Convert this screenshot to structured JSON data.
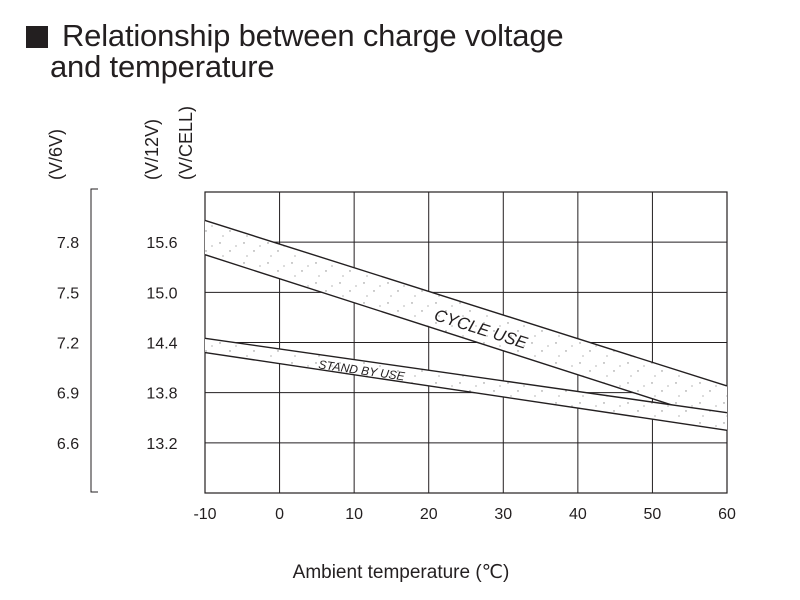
{
  "title": {
    "line1": "Relationship between charge voltage",
    "line2": "and temperature"
  },
  "chart_data": {
    "type": "area",
    "xlabel": "Ambient temperature (℃)",
    "xlim": [
      -10,
      60
    ],
    "x_ticks": [
      "-10",
      "0",
      "10",
      "20",
      "30",
      "40",
      "50",
      "60"
    ],
    "y_axes": [
      {
        "unit": "(V/6V)",
        "ticks": [
          "7.8",
          "7.5",
          "7.2",
          "6.9",
          "6.6"
        ]
      },
      {
        "unit": "(V/12V)",
        "ticks": [
          "15.6",
          "15.0",
          "14.4",
          "13.8",
          "13.2"
        ]
      },
      {
        "unit": "(V/CELL)",
        "ticks": []
      }
    ],
    "ylim_v12": [
      12.6,
      16.2
    ],
    "grid": true,
    "series": [
      {
        "name": "CYCLE USE",
        "upper": [
          [
            -10,
            15.86
          ],
          [
            60,
            13.88
          ]
        ],
        "lower": [
          [
            -10,
            15.45
          ],
          [
            60,
            13.44
          ]
        ]
      },
      {
        "name": "STAND BY USE",
        "upper": [
          [
            -10,
            14.45
          ],
          [
            60,
            13.56
          ]
        ],
        "lower": [
          [
            -10,
            14.28
          ],
          [
            60,
            13.35
          ]
        ]
      }
    ]
  }
}
